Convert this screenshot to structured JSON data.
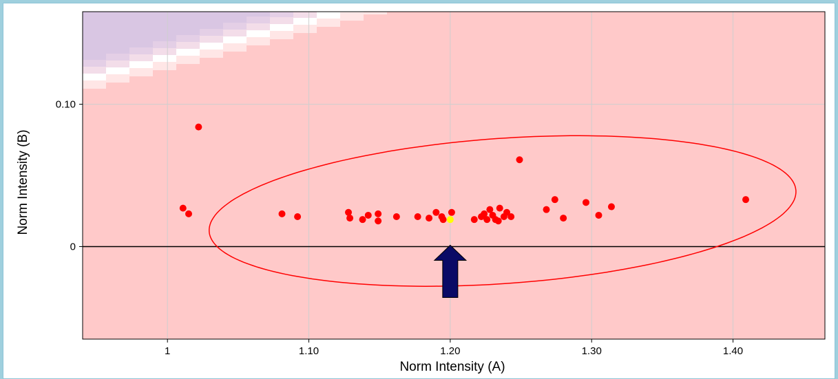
{
  "chart_data": {
    "type": "scatter",
    "title": "",
    "xlabel": "Norm Intensity (A)",
    "ylabel": "Norm Intensity (B)",
    "xlim": [
      0.94,
      1.465
    ],
    "ylim": [
      -0.065,
      0.165
    ],
    "x_ticks": [
      {
        "value": 1.0,
        "label": "1"
      },
      {
        "value": 1.1,
        "label": "1.10"
      },
      {
        "value": 1.2,
        "label": "1.20"
      },
      {
        "value": 1.3,
        "label": "1.30"
      },
      {
        "value": 1.4,
        "label": "1.40"
      }
    ],
    "y_ticks": [
      {
        "value": 0.0,
        "label": "0"
      },
      {
        "value": 0.1,
        "label": "0.10"
      }
    ],
    "grid": true,
    "series": [
      {
        "color": "#ff0000",
        "points": [
          [
            1.011,
            0.027
          ],
          [
            1.015,
            0.023
          ],
          [
            1.022,
            0.084
          ],
          [
            1.081,
            0.023
          ],
          [
            1.092,
            0.021
          ],
          [
            1.128,
            0.024
          ],
          [
            1.129,
            0.02
          ],
          [
            1.138,
            0.019
          ],
          [
            1.142,
            0.022
          ],
          [
            1.149,
            0.023
          ],
          [
            1.149,
            0.018
          ],
          [
            1.162,
            0.021
          ],
          [
            1.177,
            0.021
          ],
          [
            1.185,
            0.02
          ],
          [
            1.19,
            0.024
          ],
          [
            1.194,
            0.021
          ],
          [
            1.195,
            0.019
          ],
          [
            1.201,
            0.024
          ],
          [
            1.217,
            0.019
          ],
          [
            1.222,
            0.021
          ],
          [
            1.224,
            0.023
          ],
          [
            1.226,
            0.019
          ],
          [
            1.228,
            0.026
          ],
          [
            1.23,
            0.022
          ],
          [
            1.232,
            0.019
          ],
          [
            1.234,
            0.018
          ],
          [
            1.235,
            0.027
          ],
          [
            1.238,
            0.021
          ],
          [
            1.24,
            0.024
          ],
          [
            1.243,
            0.021
          ],
          [
            1.249,
            0.061
          ],
          [
            1.268,
            0.026
          ],
          [
            1.274,
            0.033
          ],
          [
            1.28,
            0.02
          ],
          [
            1.296,
            0.031
          ],
          [
            1.305,
            0.022
          ],
          [
            1.314,
            0.028
          ],
          [
            1.409,
            0.033
          ]
        ]
      },
      {
        "color": "#ffff00",
        "points": [
          [
            1.2,
            0.019
          ]
        ]
      }
    ],
    "ellipse": {
      "color": "#ff0000",
      "center": [
        1.237,
        0.025
      ],
      "x_radius": 0.208,
      "y_radius": 0.051,
      "tilt": -0.07
    },
    "reference_line_y": 0.0,
    "marker_arrow": {
      "x": 1.2,
      "color": "#0a0a66"
    },
    "background": {
      "plot_color": "#ffc9c9",
      "band_colors": [
        "#ffe6e6",
        "#ffffff",
        "#f3dde9",
        "#e4cfe6",
        "#d9c6e3"
      ]
    }
  }
}
